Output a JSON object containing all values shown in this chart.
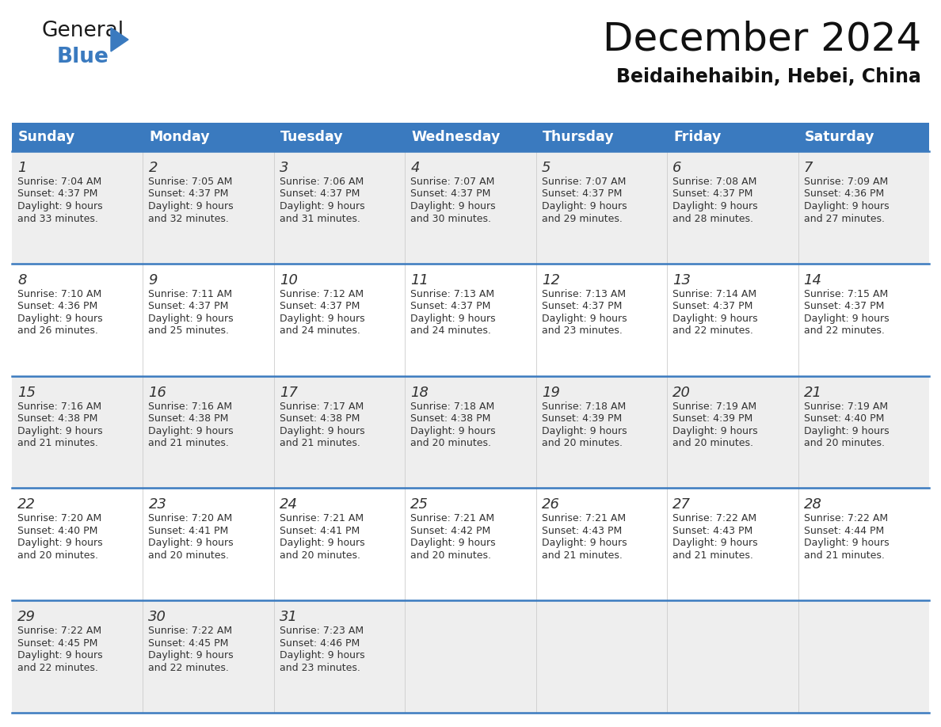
{
  "title": "December 2024",
  "subtitle": "Beidaihehaibin, Hebei, China",
  "days_of_week": [
    "Sunday",
    "Monday",
    "Tuesday",
    "Wednesday",
    "Thursday",
    "Friday",
    "Saturday"
  ],
  "header_bg": "#3a7abf",
  "header_text": "#ffffff",
  "row_bg_even": "#eeeeee",
  "row_bg_odd": "#ffffff",
  "separator_color": "#3a7abf",
  "text_color": "#333333",
  "calendar_data": [
    [
      {
        "day": 1,
        "sunrise": "7:04 AM",
        "sunset": "4:37 PM",
        "daylight_h": "9 hours",
        "daylight_m": "and 33 minutes."
      },
      {
        "day": 2,
        "sunrise": "7:05 AM",
        "sunset": "4:37 PM",
        "daylight_h": "9 hours",
        "daylight_m": "and 32 minutes."
      },
      {
        "day": 3,
        "sunrise": "7:06 AM",
        "sunset": "4:37 PM",
        "daylight_h": "9 hours",
        "daylight_m": "and 31 minutes."
      },
      {
        "day": 4,
        "sunrise": "7:07 AM",
        "sunset": "4:37 PM",
        "daylight_h": "9 hours",
        "daylight_m": "and 30 minutes."
      },
      {
        "day": 5,
        "sunrise": "7:07 AM",
        "sunset": "4:37 PM",
        "daylight_h": "9 hours",
        "daylight_m": "and 29 minutes."
      },
      {
        "day": 6,
        "sunrise": "7:08 AM",
        "sunset": "4:37 PM",
        "daylight_h": "9 hours",
        "daylight_m": "and 28 minutes."
      },
      {
        "day": 7,
        "sunrise": "7:09 AM",
        "sunset": "4:36 PM",
        "daylight_h": "9 hours",
        "daylight_m": "and 27 minutes."
      }
    ],
    [
      {
        "day": 8,
        "sunrise": "7:10 AM",
        "sunset": "4:36 PM",
        "daylight_h": "9 hours",
        "daylight_m": "and 26 minutes."
      },
      {
        "day": 9,
        "sunrise": "7:11 AM",
        "sunset": "4:37 PM",
        "daylight_h": "9 hours",
        "daylight_m": "and 25 minutes."
      },
      {
        "day": 10,
        "sunrise": "7:12 AM",
        "sunset": "4:37 PM",
        "daylight_h": "9 hours",
        "daylight_m": "and 24 minutes."
      },
      {
        "day": 11,
        "sunrise": "7:13 AM",
        "sunset": "4:37 PM",
        "daylight_h": "9 hours",
        "daylight_m": "and 24 minutes."
      },
      {
        "day": 12,
        "sunrise": "7:13 AM",
        "sunset": "4:37 PM",
        "daylight_h": "9 hours",
        "daylight_m": "and 23 minutes."
      },
      {
        "day": 13,
        "sunrise": "7:14 AM",
        "sunset": "4:37 PM",
        "daylight_h": "9 hours",
        "daylight_m": "and 22 minutes."
      },
      {
        "day": 14,
        "sunrise": "7:15 AM",
        "sunset": "4:37 PM",
        "daylight_h": "9 hours",
        "daylight_m": "and 22 minutes."
      }
    ],
    [
      {
        "day": 15,
        "sunrise": "7:16 AM",
        "sunset": "4:38 PM",
        "daylight_h": "9 hours",
        "daylight_m": "and 21 minutes."
      },
      {
        "day": 16,
        "sunrise": "7:16 AM",
        "sunset": "4:38 PM",
        "daylight_h": "9 hours",
        "daylight_m": "and 21 minutes."
      },
      {
        "day": 17,
        "sunrise": "7:17 AM",
        "sunset": "4:38 PM",
        "daylight_h": "9 hours",
        "daylight_m": "and 21 minutes."
      },
      {
        "day": 18,
        "sunrise": "7:18 AM",
        "sunset": "4:38 PM",
        "daylight_h": "9 hours",
        "daylight_m": "and 20 minutes."
      },
      {
        "day": 19,
        "sunrise": "7:18 AM",
        "sunset": "4:39 PM",
        "daylight_h": "9 hours",
        "daylight_m": "and 20 minutes."
      },
      {
        "day": 20,
        "sunrise": "7:19 AM",
        "sunset": "4:39 PM",
        "daylight_h": "9 hours",
        "daylight_m": "and 20 minutes."
      },
      {
        "day": 21,
        "sunrise": "7:19 AM",
        "sunset": "4:40 PM",
        "daylight_h": "9 hours",
        "daylight_m": "and 20 minutes."
      }
    ],
    [
      {
        "day": 22,
        "sunrise": "7:20 AM",
        "sunset": "4:40 PM",
        "daylight_h": "9 hours",
        "daylight_m": "and 20 minutes."
      },
      {
        "day": 23,
        "sunrise": "7:20 AM",
        "sunset": "4:41 PM",
        "daylight_h": "9 hours",
        "daylight_m": "and 20 minutes."
      },
      {
        "day": 24,
        "sunrise": "7:21 AM",
        "sunset": "4:41 PM",
        "daylight_h": "9 hours",
        "daylight_m": "and 20 minutes."
      },
      {
        "day": 25,
        "sunrise": "7:21 AM",
        "sunset": "4:42 PM",
        "daylight_h": "9 hours",
        "daylight_m": "and 20 minutes."
      },
      {
        "day": 26,
        "sunrise": "7:21 AM",
        "sunset": "4:43 PM",
        "daylight_h": "9 hours",
        "daylight_m": "and 21 minutes."
      },
      {
        "day": 27,
        "sunrise": "7:22 AM",
        "sunset": "4:43 PM",
        "daylight_h": "9 hours",
        "daylight_m": "and 21 minutes."
      },
      {
        "day": 28,
        "sunrise": "7:22 AM",
        "sunset": "4:44 PM",
        "daylight_h": "9 hours",
        "daylight_m": "and 21 minutes."
      }
    ],
    [
      {
        "day": 29,
        "sunrise": "7:22 AM",
        "sunset": "4:45 PM",
        "daylight_h": "9 hours",
        "daylight_m": "and 22 minutes."
      },
      {
        "day": 30,
        "sunrise": "7:22 AM",
        "sunset": "4:45 PM",
        "daylight_h": "9 hours",
        "daylight_m": "and 22 minutes."
      },
      {
        "day": 31,
        "sunrise": "7:23 AM",
        "sunset": "4:46 PM",
        "daylight_h": "9 hours",
        "daylight_m": "and 23 minutes."
      },
      null,
      null,
      null,
      null
    ]
  ]
}
